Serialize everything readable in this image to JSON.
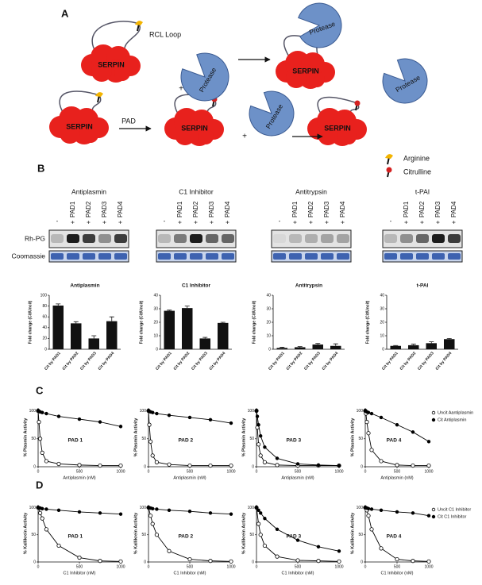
{
  "panel_labels": [
    "A",
    "B",
    "C",
    "D"
  ],
  "diagram": {
    "rcl_loop": "RCL Loop",
    "serpin": [
      "SERPIN",
      "SERPIN",
      "SERPIN",
      "SERPIN",
      "SERPIN"
    ],
    "protease": [
      "Protease",
      "Protease",
      "Protease",
      "Protease"
    ],
    "plus": [
      "+",
      "+"
    ],
    "pad": "PAD",
    "legend": [
      "Arginine",
      "Citrulline"
    ]
  },
  "blots": {
    "titles": [
      "Antiplasmin",
      "C1 Inhibitor",
      "Antitrypsin",
      "t-PAI"
    ],
    "lanes": [
      "-",
      "+",
      "+",
      "+",
      "+"
    ],
    "pads": [
      "PAD1",
      "PAD2",
      "PAD3",
      "PAD4"
    ],
    "rows": [
      "Rh-PG",
      "Coomassie"
    ]
  },
  "chart_data": [
    {
      "type": "bar",
      "title": "Antiplasmin",
      "y_label": "Fold change (Cit/Uncit)",
      "categories": [
        "Cit by PAD1",
        "Cit by PAD2",
        "Cit by PAD3",
        "Cit by PAD4"
      ],
      "values": [
        81,
        48,
        20,
        52
      ],
      "errors": [
        3,
        3,
        5,
        8
      ],
      "color": "#111111",
      "ylim": [
        0,
        100
      ],
      "yticks": [
        0,
        20,
        40,
        60,
        80,
        100
      ]
    },
    {
      "type": "bar",
      "title": "C1 Inhibitor",
      "y_label": "Fold change (Cit/Uncit)",
      "categories": [
        "Cit by PAD1",
        "Cit by PAD2",
        "Cit by PAD3",
        "Cit by PAD4"
      ],
      "values": [
        28.5,
        30.5,
        8,
        19.5
      ],
      "errors": [
        0.5,
        1.5,
        0.8,
        0.5
      ],
      "color": "#111111",
      "ylim": [
        0,
        40
      ],
      "yticks": [
        0,
        10,
        20,
        30,
        40
      ]
    },
    {
      "type": "bar",
      "title": "Antitrypsin",
      "y_label": "Fold change (Cit/Uncit)",
      "categories": [
        "Cit by PAD1",
        "Cit by PAD2",
        "Cit by PAD3",
        "Cit by PAD4"
      ],
      "values": [
        1,
        1.5,
        3.5,
        2.5
      ],
      "errors": [
        0.5,
        0.5,
        0.8,
        1.5
      ],
      "color": "#111111",
      "ylim": [
        0,
        40
      ],
      "yticks": [
        0,
        10,
        20,
        30,
        40
      ]
    },
    {
      "type": "bar",
      "title": "t-PAI",
      "y_label": "Fold change (Cit/Uncit)",
      "categories": [
        "Cit by PAD1",
        "Cit by PAD2",
        "Cit by PAD3",
        "Cit by PAD4"
      ],
      "values": [
        2.5,
        3,
        4.5,
        7.5
      ],
      "errors": [
        0.3,
        0.8,
        1,
        0.5
      ],
      "color": "#111111",
      "ylim": [
        0,
        40
      ],
      "yticks": [
        0,
        10,
        20,
        30,
        40
      ]
    },
    {
      "type": "scatter",
      "label": "PAD 1",
      "y_label": "% Plasmin Activity",
      "x_label": "Antiplasmin (nM)",
      "xlim": [
        0,
        1000
      ],
      "xticks": [
        0,
        500,
        1000
      ],
      "ylim": [
        0,
        105
      ],
      "yticks": [
        0,
        50,
        100
      ],
      "x": [
        0,
        10,
        25,
        50,
        100,
        250,
        500,
        750,
        1000
      ],
      "series": [
        {
          "open": true,
          "color": "#000000",
          "values": [
            100,
            80,
            50,
            25,
            10,
            5,
            3,
            2,
            2
          ]
        },
        {
          "open": false,
          "color": "#000000",
          "values": [
            100,
            99,
            98,
            97,
            95,
            90,
            85,
            80,
            72
          ]
        }
      ]
    },
    {
      "type": "scatter",
      "label": "PAD 2",
      "y_label": "% Plasmin Activity",
      "x_label": "Antiplasmin (nM)",
      "xlim": [
        0,
        1000
      ],
      "xticks": [
        0,
        500,
        1000
      ],
      "ylim": [
        0,
        105
      ],
      "yticks": [
        0,
        50,
        100
      ],
      "x": [
        0,
        10,
        25,
        50,
        100,
        250,
        500,
        750,
        1000
      ],
      "series": [
        {
          "open": true,
          "color": "#000000",
          "values": [
            100,
            75,
            45,
            20,
            8,
            4,
            2,
            2,
            2
          ]
        },
        {
          "open": false,
          "color": "#000000",
          "values": [
            100,
            99,
            98,
            97,
            95,
            92,
            88,
            84,
            78
          ]
        }
      ]
    },
    {
      "type": "scatter",
      "label": "PAD 3",
      "y_label": "% Plasmin Activity",
      "x_label": "Antiplasmin (nM)",
      "xlim": [
        0,
        1000
      ],
      "xticks": [
        0,
        500,
        1000
      ],
      "ylim": [
        0,
        105
      ],
      "yticks": [
        0,
        50,
        100
      ],
      "x": [
        0,
        10,
        25,
        50,
        100,
        250,
        500,
        750,
        1000
      ],
      "series": [
        {
          "open": true,
          "color": "#000000",
          "values": [
            100,
            70,
            40,
            20,
            8,
            3,
            2,
            2,
            2
          ]
        },
        {
          "open": false,
          "color": "#000000",
          "values": [
            100,
            90,
            75,
            55,
            35,
            15,
            5,
            3,
            2
          ]
        }
      ]
    },
    {
      "type": "scatter",
      "label": "PAD 4",
      "y_label": "% Plasmin Activity",
      "x_label": "Antiplasmin (nM)",
      "xlim": [
        0,
        1000
      ],
      "xticks": [
        0,
        500,
        1000
      ],
      "ylim": [
        0,
        105
      ],
      "yticks": [
        0,
        50,
        100
      ],
      "x": [
        0,
        10,
        25,
        50,
        100,
        250,
        500,
        750,
        1000
      ],
      "legend": "right",
      "series": [
        {
          "name": "Uncit Aantiplasmin",
          "open": true,
          "color": "#000000",
          "values": [
            100,
            95,
            80,
            60,
            30,
            10,
            3,
            2,
            2
          ]
        },
        {
          "name": "Cit Antiplasmin",
          "open": false,
          "color": "#000000",
          "values": [
            100,
            99,
            98,
            97,
            95,
            88,
            75,
            62,
            45
          ]
        }
      ]
    },
    {
      "type": "scatter",
      "label": "PAD 1",
      "y_label": "% Kallikrein Activity",
      "x_label": "C1 Inhibitor (nM)",
      "xlim": [
        0,
        1000
      ],
      "xticks": [
        0,
        500,
        1000
      ],
      "ylim": [
        0,
        105
      ],
      "yticks": [
        0,
        50,
        100
      ],
      "x": [
        0,
        25,
        50,
        100,
        250,
        500,
        750,
        1000
      ],
      "series": [
        {
          "open": true,
          "color": "#000000",
          "values": [
            100,
            90,
            80,
            60,
            30,
            8,
            2,
            1
          ]
        },
        {
          "open": false,
          "color": "#000000",
          "values": [
            100,
            99,
            98,
            97,
            95,
            92,
            90,
            88
          ]
        }
      ]
    },
    {
      "type": "scatter",
      "label": "PAD 2",
      "y_label": "% Kallikrein Activity",
      "x_label": "C1 Inhibitor (nM)",
      "xlim": [
        0,
        1000
      ],
      "xticks": [
        0,
        500,
        1000
      ],
      "ylim": [
        0,
        105
      ],
      "yticks": [
        0,
        50,
        100
      ],
      "x": [
        0,
        25,
        50,
        100,
        250,
        500,
        750,
        1000
      ],
      "series": [
        {
          "open": true,
          "color": "#000000",
          "values": [
            100,
            85,
            70,
            50,
            20,
            5,
            2,
            1
          ]
        },
        {
          "open": false,
          "color": "#000000",
          "values": [
            100,
            99,
            98,
            97,
            95,
            93,
            90,
            88
          ]
        }
      ]
    },
    {
      "type": "scatter",
      "label": "PAD 3",
      "y_label": "% Kallikrein Activity",
      "x_label": "C1 Inhibitor (nM)",
      "xlim": [
        0,
        1000
      ],
      "xticks": [
        0,
        500,
        1000
      ],
      "ylim": [
        0,
        105
      ],
      "yticks": [
        0,
        50,
        100
      ],
      "x": [
        0,
        25,
        50,
        100,
        250,
        500,
        750,
        1000
      ],
      "series": [
        {
          "open": true,
          "color": "#000000",
          "values": [
            100,
            70,
            50,
            30,
            10,
            3,
            2,
            1
          ]
        },
        {
          "open": false,
          "color": "#000000",
          "values": [
            100,
            95,
            90,
            80,
            60,
            40,
            28,
            20
          ]
        }
      ]
    },
    {
      "type": "scatter",
      "label": "PAD 4",
      "y_label": "% Kallikrein Activity",
      "x_label": "C1 Inhibitor (nM)",
      "xlim": [
        0,
        1000
      ],
      "xticks": [
        0,
        500,
        1000
      ],
      "ylim": [
        0,
        105
      ],
      "yticks": [
        0,
        50,
        100
      ],
      "x": [
        0,
        25,
        50,
        100,
        250,
        500,
        750,
        1000
      ],
      "legend": "right",
      "series": [
        {
          "name": "Uncit C1 Inhibitor",
          "open": true,
          "color": "#000000",
          "values": [
            100,
            95,
            85,
            60,
            25,
            5,
            2,
            1
          ]
        },
        {
          "name": "Cit C1 Inhibitor",
          "open": false,
          "color": "#000000",
          "values": [
            100,
            99,
            98,
            97,
            95,
            92,
            90,
            85
          ]
        }
      ]
    }
  ]
}
